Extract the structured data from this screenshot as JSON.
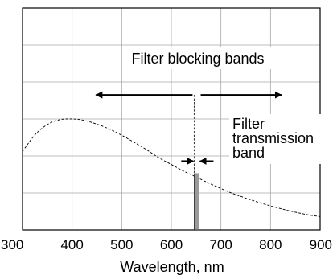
{
  "chart_data": {
    "type": "line",
    "title": "",
    "xlabel": "Wavelength, nm",
    "ylabel": "",
    "xlim": [
      300,
      900
    ],
    "ylim": [
      0,
      6
    ],
    "grid": true,
    "x_ticks": [
      "300",
      "400",
      "500",
      "600",
      "700",
      "800",
      "900"
    ],
    "y_gridlines": [
      1,
      2,
      3,
      4,
      5
    ],
    "series": [
      {
        "style": "dashed",
        "x": [
          300,
          325,
          350,
          375,
          400,
          425,
          450,
          475,
          500,
          525,
          550,
          575,
          600,
          625,
          650,
          675,
          700,
          725,
          750,
          775,
          800,
          825,
          850,
          875,
          900
        ],
        "y": [
          2.12,
          2.57,
          2.85,
          2.98,
          3.0,
          2.96,
          2.86,
          2.73,
          2.56,
          2.37,
          2.17,
          1.95,
          1.77,
          1.59,
          1.43,
          1.27,
          1.12,
          0.98,
          0.86,
          0.75,
          0.65,
          0.56,
          0.48,
          0.41,
          0.36
        ]
      }
    ],
    "transmission_band": {
      "x_start": 646,
      "x_end": 656,
      "y_top": 1.52,
      "color": "#999999"
    },
    "annotations": {
      "blocking_label": "Filter blocking bands",
      "transmission_label": [
        "Filter",
        "transmission",
        "band"
      ],
      "blocking_arrow": {
        "x_from": 448,
        "x_to": 822,
        "y": 3.65
      },
      "transmission_arrow_left_x": 620,
      "transmission_arrow_right_x": 685,
      "transmission_arrow_y": 1.86,
      "guide_top_y": 3.65
    }
  }
}
